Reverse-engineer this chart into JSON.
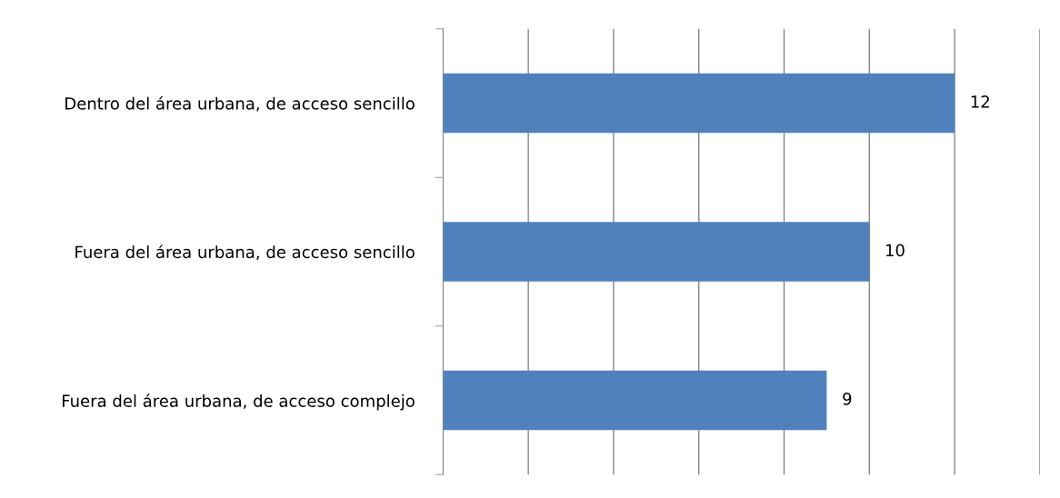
{
  "chart_data": {
    "type": "bar",
    "orientation": "horizontal",
    "categories": [
      "Dentro del área urbana, de acceso sencillo",
      "Fuera del área urbana, de acceso sencillo",
      "Fuera del área urbana, de acceso complejo"
    ],
    "values": [
      12,
      10,
      9
    ],
    "color": "#4f81bd",
    "xlim": [
      0,
      14
    ],
    "xticks": [
      {
        "value": 0,
        "label": null
      },
      {
        "value": 2,
        "label": null
      },
      {
        "value": 4,
        "label": null
      },
      {
        "value": 6,
        "label": null
      },
      {
        "value": 8,
        "label": null
      },
      {
        "value": 10,
        "label": null
      },
      {
        "value": 12,
        "label": null
      },
      {
        "value": 14,
        "label": null
      }
    ],
    "tick_labels": "y",
    "grid": "x",
    "data_labels": true,
    "legend": false
  }
}
